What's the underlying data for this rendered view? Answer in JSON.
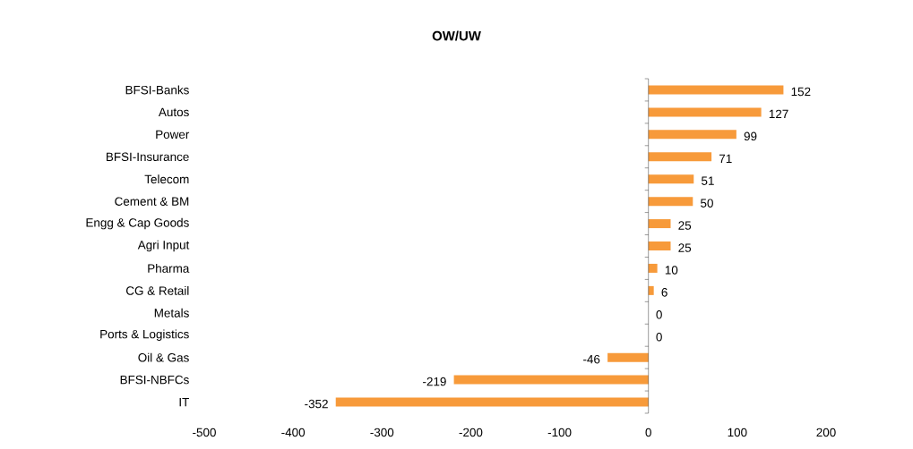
{
  "chart_data": {
    "type": "bar",
    "orientation": "horizontal",
    "title": "OW/UW",
    "categories": [
      "BFSI-Banks",
      "Autos",
      "Power",
      "BFSI-Insurance",
      "Telecom",
      "Cement & BM",
      "Engg & Cap Goods",
      "Agri Input",
      "Pharma",
      "CG & Retail",
      "Metals",
      "Ports & Logistics",
      "Oil & Gas",
      "BFSI-NBFCs",
      "IT"
    ],
    "values": [
      152,
      127,
      99,
      71,
      51,
      50,
      25,
      25,
      10,
      6,
      0,
      0,
      -46,
      -219,
      -352
    ],
    "color": "#f79a3a",
    "data_labels": true,
    "xlim": [
      -500,
      200
    ],
    "xticks": [
      -500,
      -400,
      -300,
      -200,
      -100,
      0,
      100,
      200
    ]
  }
}
